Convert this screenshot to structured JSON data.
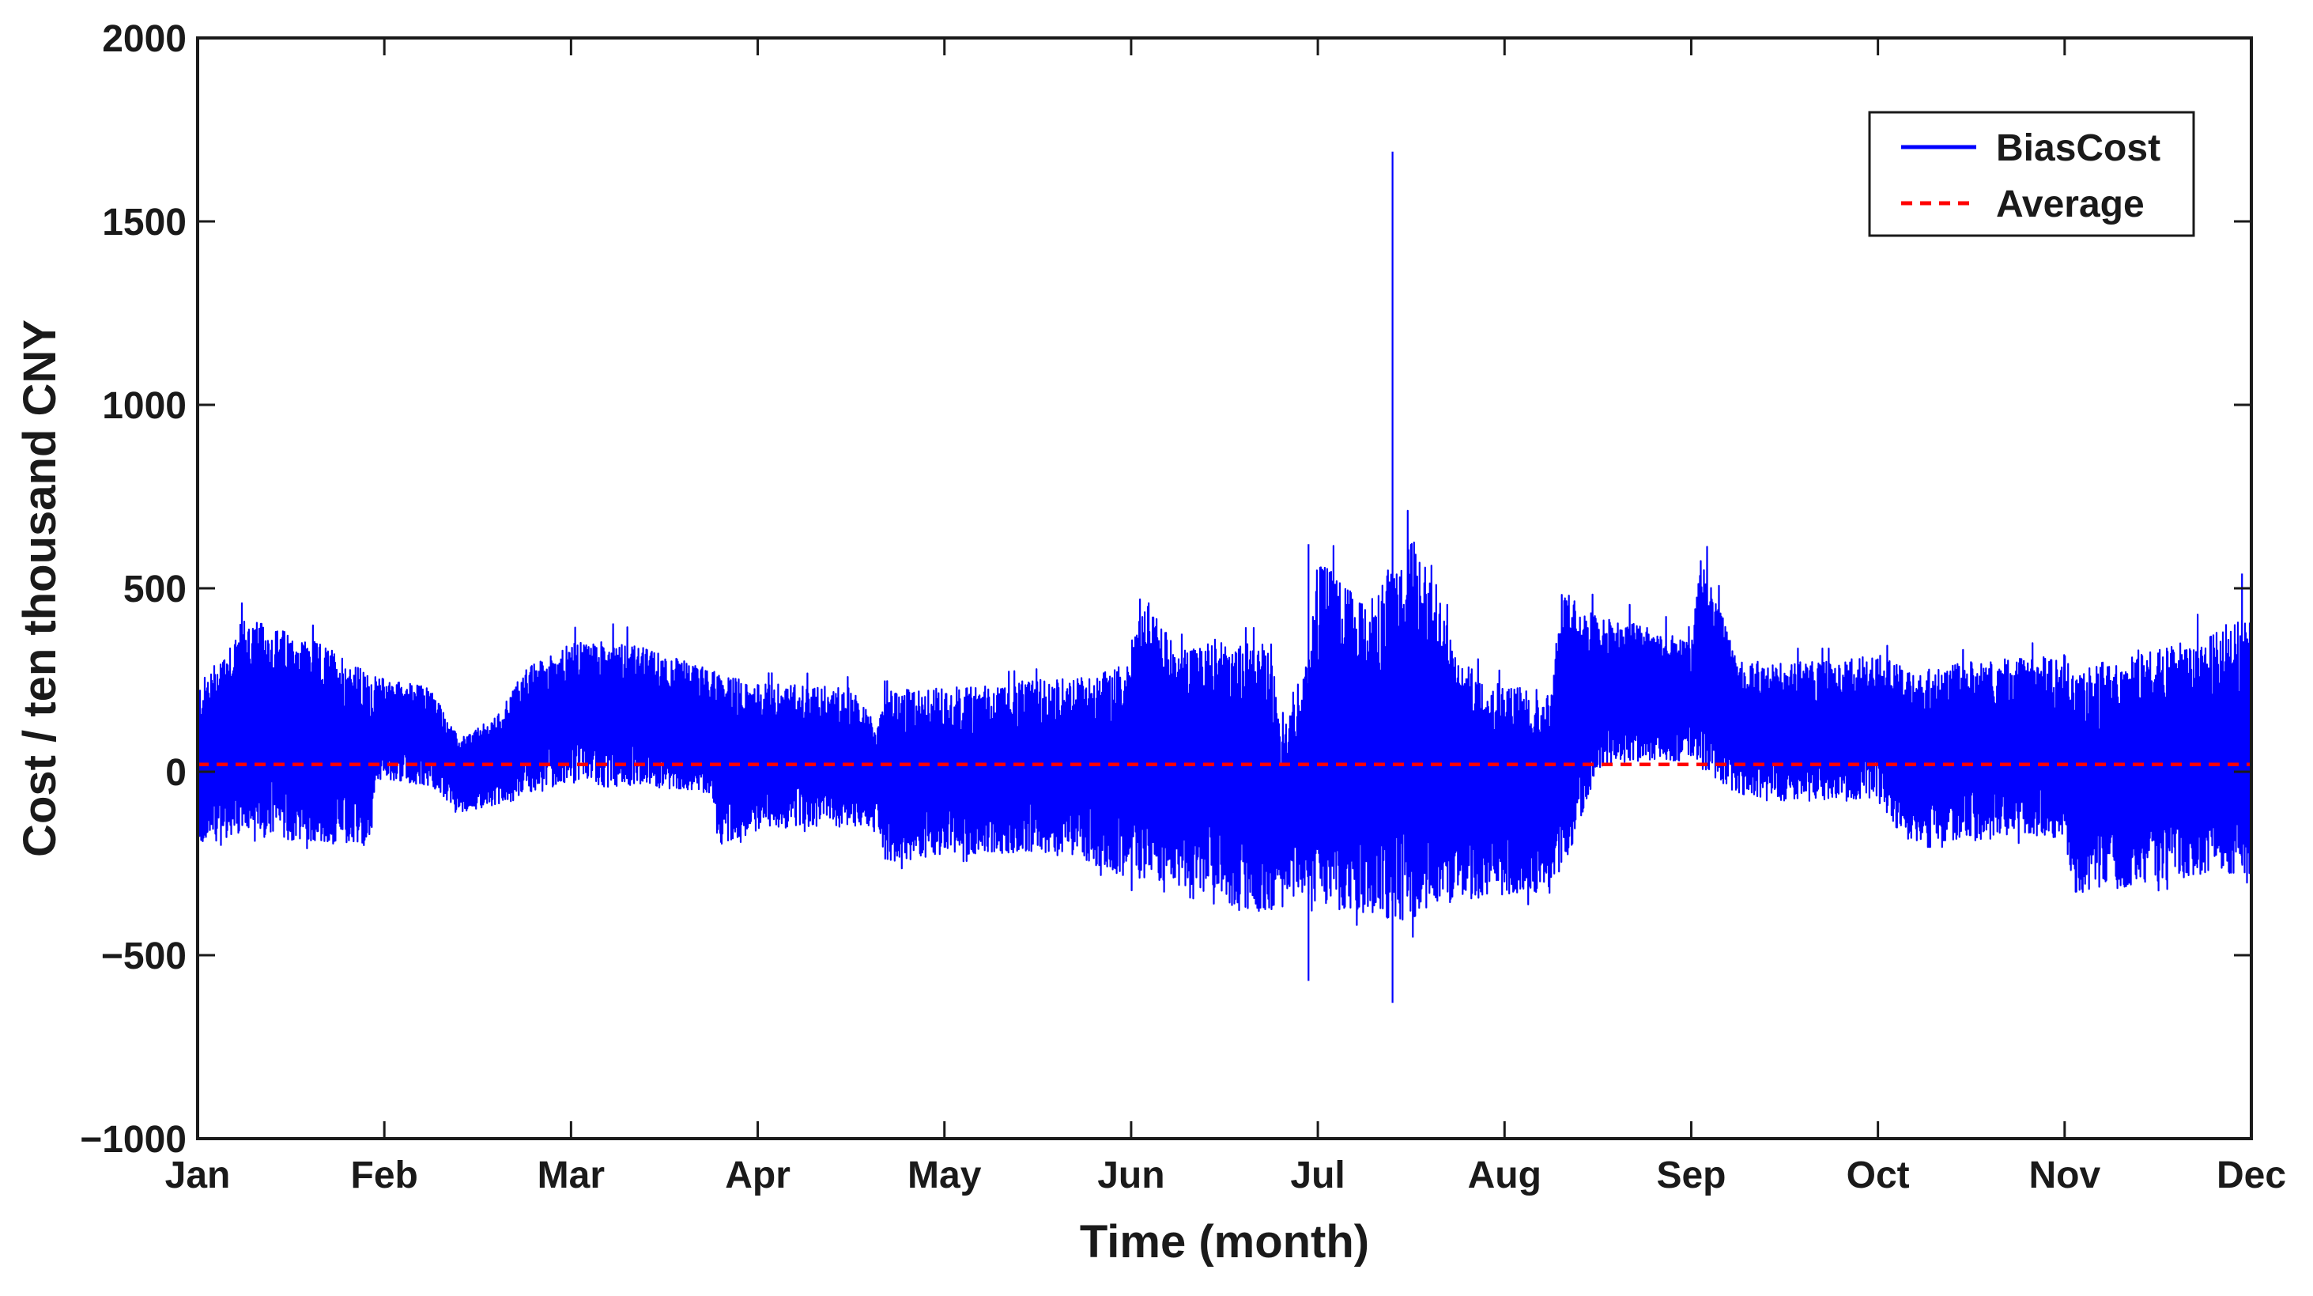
{
  "chart_data": {
    "type": "line",
    "title": "",
    "xlabel": "Time (month)",
    "ylabel": "Cost / ten  thousand CNY",
    "x_ticks": [
      "Jan",
      "Feb",
      "Mar",
      "Apr",
      "May",
      "Jun",
      "Jul",
      "Aug",
      "Sep",
      "Oct",
      "Nov",
      "Dec"
    ],
    "y_ticks": [
      -1000,
      -500,
      0,
      500,
      1000,
      1500,
      2000
    ],
    "ylim": [
      -1000,
      2000
    ],
    "xlim_months": [
      0,
      11
    ],
    "grid": false,
    "legend": {
      "placement": "top-right",
      "entries": [
        "BiasCost",
        "Average"
      ]
    },
    "series": [
      {
        "name": "BiasCost",
        "color": "#0000ff",
        "style": "solid",
        "envelope": {
          "x_month": [
            0,
            0.25,
            0.5,
            0.75,
            0.93,
            0.95,
            1.25,
            1.4,
            1.6,
            1.75,
            2.0,
            2.25,
            2.5,
            2.75,
            2.79,
            3.0,
            3.25,
            3.5,
            3.65,
            3.67,
            4.0,
            4.25,
            4.5,
            4.75,
            5.0,
            5.05,
            5.25,
            5.5,
            5.55,
            5.75,
            5.8,
            5.95,
            6.0,
            6.25,
            6.5,
            6.6,
            6.75,
            7.0,
            7.25,
            7.3,
            7.5,
            7.75,
            8.0,
            8.05,
            8.25,
            8.5,
            8.7,
            8.75,
            9.0,
            9.15,
            9.25,
            9.5,
            9.75,
            10.0,
            10.05,
            10.25,
            10.5,
            10.75,
            11.0
          ],
          "upper": [
            230,
            420,
            380,
            330,
            260,
            260,
            230,
            90,
            150,
            280,
            350,
            360,
            320,
            280,
            270,
            240,
            240,
            230,
            120,
            220,
            230,
            240,
            250,
            260,
            300,
            500,
            330,
            380,
            350,
            350,
            150,
            300,
            600,
            450,
            650,
            580,
            300,
            240,
            220,
            500,
            420,
            400,
            350,
            600,
            300,
            300,
            300,
            300,
            320,
            280,
            280,
            300,
            310,
            320,
            260,
            320,
            340,
            390,
            420
          ],
          "lower": [
            -200,
            -170,
            -190,
            -200,
            -210,
            -20,
            -40,
            -110,
            -90,
            -60,
            -30,
            -40,
            -40,
            -60,
            -200,
            -160,
            -150,
            -150,
            -150,
            -250,
            -230,
            -220,
            -230,
            -240,
            -300,
            -290,
            -310,
            -340,
            -380,
            -380,
            -340,
            -340,
            -370,
            -390,
            -420,
            -380,
            -350,
            -340,
            -330,
            -300,
            10,
            30,
            30,
            10,
            -60,
            -80,
            -80,
            -70,
            -80,
            -190,
            -190,
            -190,
            -180,
            -180,
            -330,
            -320,
            -300,
            -280,
            -280
          ],
          "spikes": [
            {
              "x_month": 6.4,
              "high": 1690,
              "low": -630
            },
            {
              "x_month": 5.95,
              "high": 620,
              "low": -570
            },
            {
              "x_month": 10.95,
              "high": 540,
              "low": -250
            }
          ]
        }
      },
      {
        "name": "Average",
        "color": "#ff0000",
        "style": "dashed",
        "value": 20
      }
    ]
  }
}
